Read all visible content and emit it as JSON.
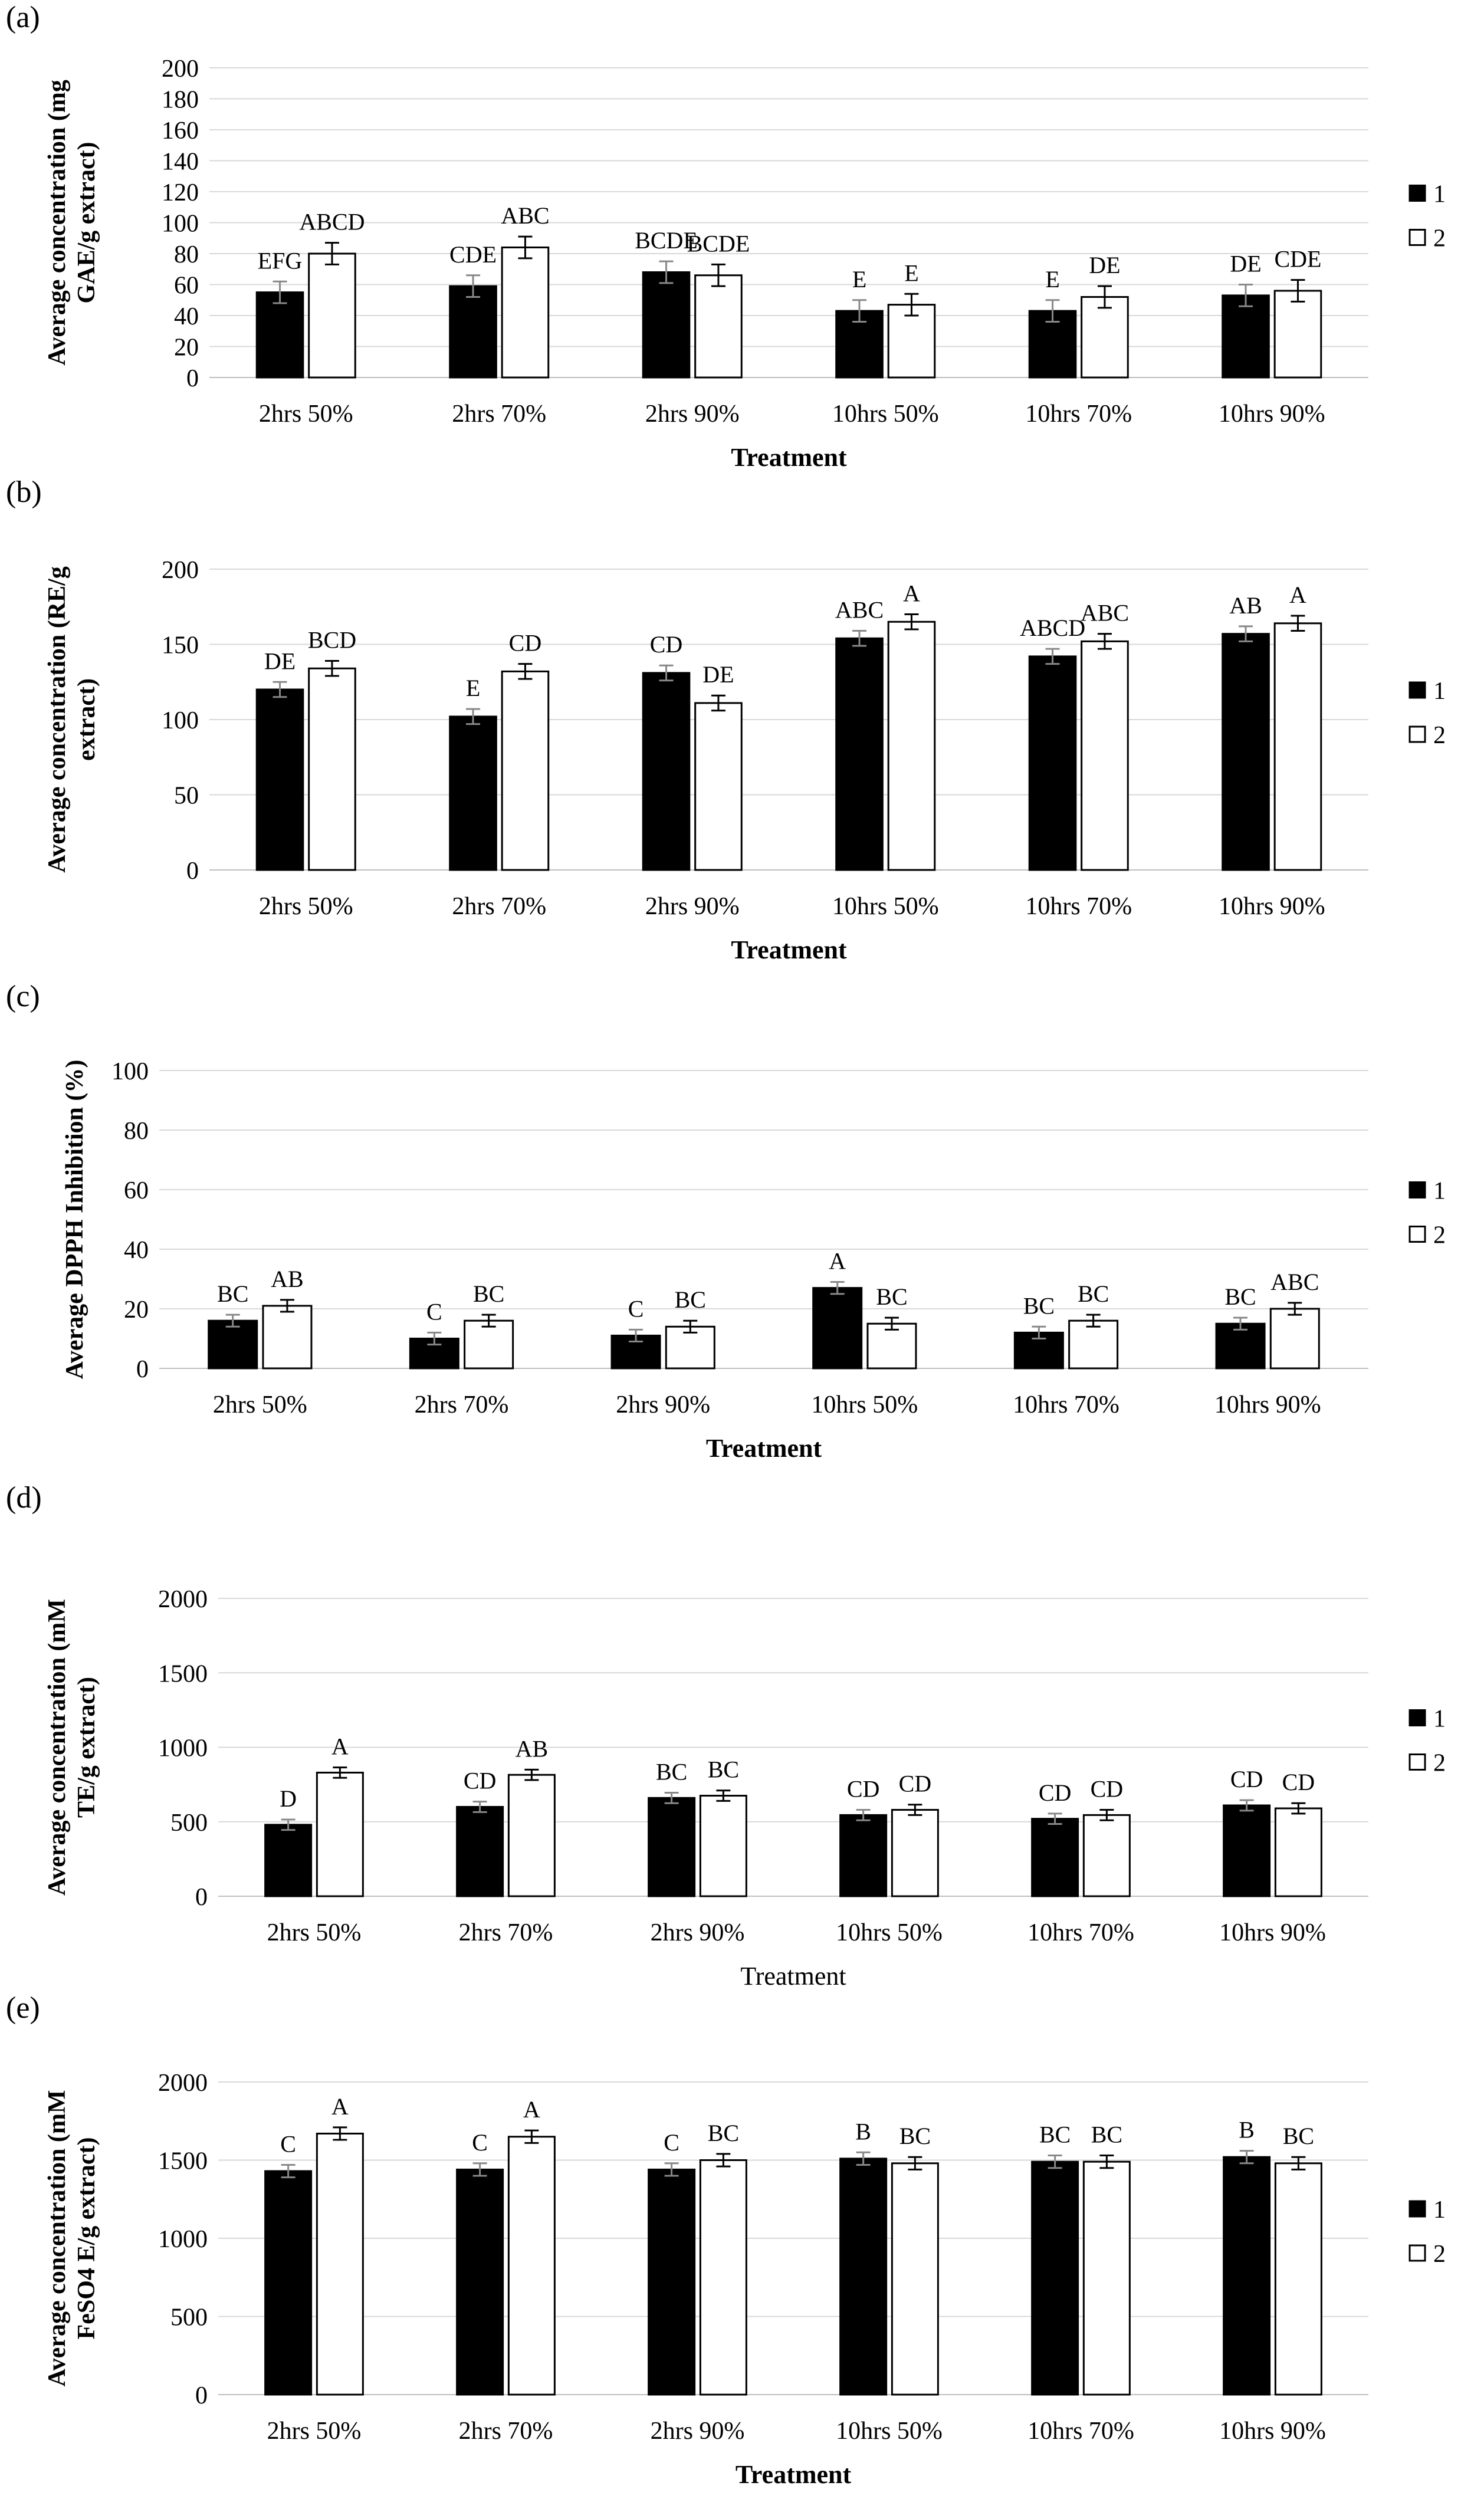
{
  "chart_data": [
    {
      "type": "bar",
      "panel_label": "(a)",
      "categories": [
        "2hrs 50%",
        "2hrs 70%",
        "2hrs 90%",
        "10hrs 50%",
        "10hrs 70%",
        "10hrs 90%"
      ],
      "series": [
        {
          "name": "1",
          "values": [
            55,
            59,
            68,
            43,
            43,
            53
          ],
          "errors": [
            7,
            7,
            7,
            7,
            7,
            7
          ],
          "labels": [
            "EFG",
            "CDE",
            "BCDE",
            "E",
            "E",
            "DE"
          ]
        },
        {
          "name": "2",
          "values": [
            80,
            84,
            66,
            47,
            52,
            56
          ],
          "errors": [
            7,
            7,
            7,
            7,
            7,
            7
          ],
          "labels": [
            "ABCD",
            "ABC",
            "BCDE",
            "E",
            "DE",
            "CDE"
          ]
        }
      ],
      "title": "",
      "xlabel": "Treatment",
      "ylabel_lines": [
        "Average concentration (mg",
        "GAE/g extract)"
      ],
      "ylim": [
        0,
        200
      ],
      "yticks": [
        0,
        20,
        40,
        60,
        80,
        100,
        120,
        140,
        160,
        180,
        200
      ],
      "grid": true,
      "legend": "right"
    },
    {
      "type": "bar",
      "panel_label": "(b)",
      "categories": [
        "2hrs 50%",
        "2hrs 70%",
        "2hrs 90%",
        "10hrs 50%",
        "10hrs 70%",
        "10hrs 90%"
      ],
      "series": [
        {
          "name": "1",
          "values": [
            120,
            102,
            131,
            154,
            142,
            157
          ],
          "errors": [
            5,
            5,
            5,
            5,
            5,
            5
          ],
          "labels": [
            "DE",
            "E",
            "CD",
            "ABC",
            "ABCD",
            "AB"
          ]
        },
        {
          "name": "2",
          "values": [
            134,
            132,
            111,
            165,
            152,
            164
          ],
          "errors": [
            5,
            5,
            5,
            5,
            5,
            5
          ],
          "labels": [
            "BCD",
            "CD",
            "DE",
            "A",
            "ABC",
            "A"
          ]
        }
      ],
      "title": "",
      "xlabel": "Treatment",
      "ylabel_lines": [
        "Average concentration (RE/g",
        "extract)"
      ],
      "ylim": [
        0,
        200
      ],
      "yticks": [
        0,
        50,
        100,
        150,
        200
      ],
      "grid": true,
      "legend": "right"
    },
    {
      "type": "bar",
      "panel_label": "(c)",
      "categories": [
        "2hrs 50%",
        "2hrs 70%",
        "2hrs 90%",
        "10hrs 50%",
        "10hrs 70%",
        "10hrs 90%"
      ],
      "series": [
        {
          "name": "1",
          "values": [
            16,
            10,
            11,
            27,
            12,
            15
          ],
          "errors": [
            2,
            2,
            2,
            2,
            2,
            2
          ],
          "labels": [
            "BC",
            "C",
            "C",
            "A",
            "BC",
            "BC"
          ]
        },
        {
          "name": "2",
          "values": [
            21,
            16,
            14,
            15,
            16,
            20
          ],
          "errors": [
            2,
            2,
            2,
            2,
            2,
            2
          ],
          "labels": [
            "AB",
            "BC",
            "BC",
            "BC",
            "BC",
            "ABC"
          ]
        }
      ],
      "title": "",
      "xlabel": "Treatment",
      "ylabel_lines": [
        "Average DPPH Inhibition (%)"
      ],
      "ylim": [
        0,
        100
      ],
      "yticks": [
        0,
        20,
        40,
        60,
        80,
        100
      ],
      "grid": true,
      "legend": "right"
    },
    {
      "type": "bar",
      "panel_label": "(d)",
      "categories": [
        "2hrs 50%",
        "2hrs 70%",
        "2hrs 90%",
        "10hrs 50%",
        "10hrs 70%",
        "10hrs 90%"
      ],
      "series": [
        {
          "name": "1",
          "values": [
            480,
            600,
            660,
            545,
            520,
            610
          ],
          "errors": [
            35,
            35,
            35,
            35,
            35,
            35
          ],
          "labels": [
            "D",
            "CD",
            "BC",
            "CD",
            "CD",
            "CD"
          ]
        },
        {
          "name": "2",
          "values": [
            830,
            815,
            675,
            580,
            545,
            590
          ],
          "errors": [
            35,
            35,
            35,
            35,
            35,
            35
          ],
          "labels": [
            "A",
            "AB",
            "BC",
            "CD",
            "CD",
            "CD"
          ]
        }
      ],
      "title": "",
      "xlabel": "Treatment",
      "ylabel_lines": [
        "Average concentration (mM",
        "TE/g extract)"
      ],
      "ylim": [
        0,
        2000
      ],
      "yticks": [
        0,
        500,
        1000,
        1500,
        2000
      ],
      "grid": true,
      "legend": "right"
    },
    {
      "type": "bar",
      "panel_label": "(e)",
      "categories": [
        "2hrs 50%",
        "2hrs 70%",
        "2hrs 90%",
        "10hrs 50%",
        "10hrs 70%",
        "10hrs 90%"
      ],
      "series": [
        {
          "name": "1",
          "values": [
            1430,
            1440,
            1440,
            1510,
            1490,
            1520
          ],
          "errors": [
            40,
            40,
            40,
            40,
            40,
            40
          ],
          "labels": [
            "C",
            "C",
            "C",
            "B",
            "BC",
            "B"
          ]
        },
        {
          "name": "2",
          "values": [
            1670,
            1650,
            1500,
            1480,
            1490,
            1480
          ],
          "errors": [
            40,
            40,
            40,
            40,
            40,
            40
          ],
          "labels": [
            "A",
            "A",
            "BC",
            "BC",
            "BC",
            "BC"
          ]
        }
      ],
      "title": "",
      "xlabel": "Treatment",
      "ylabel_lines": [
        "Average concentration (mM",
        "FeSO4 E/g extract)"
      ],
      "ylim": [
        0,
        2000
      ],
      "yticks": [
        0,
        500,
        1000,
        1500,
        2000
      ],
      "grid": true,
      "legend": "right"
    }
  ]
}
